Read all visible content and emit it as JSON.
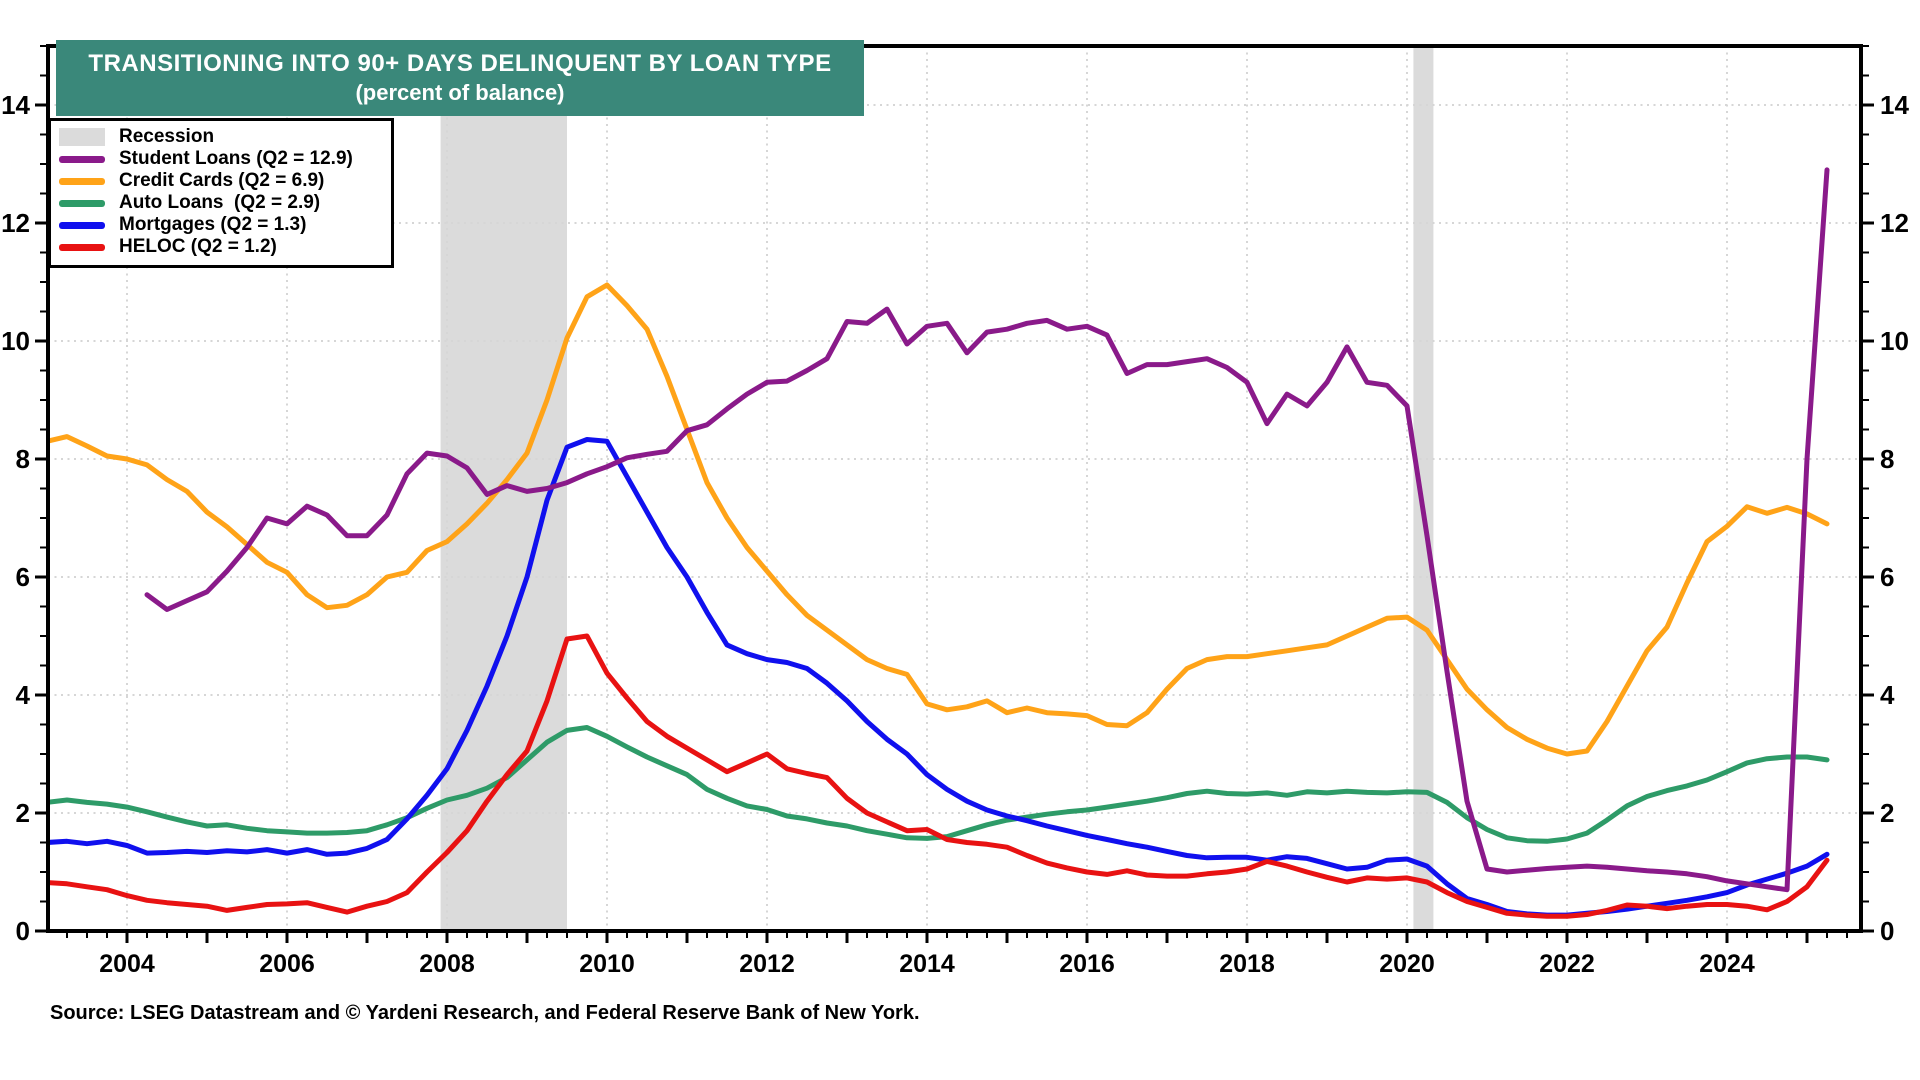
{
  "header": {
    "title": "TRANSITIONING INTO 90+ DAYS DELINQUENT BY LOAN TYPE",
    "subtitle": "(percent of balance)"
  },
  "source_note": "Source: LSEG Datastream and © Yardeni Research, and Federal Reserve Bank of New York.",
  "colors": {
    "banner_bg": "#3A887A",
    "grid": "#D6D6D6",
    "recession_band": "#DBDBDB",
    "axis": "#000000",
    "student_loans": "#8A1A8A",
    "credit_cards": "#FFA318",
    "auto_loans": "#2E9B68",
    "mortgages": "#1010EE",
    "heloc": "#E81212"
  },
  "legend": {
    "items": [
      {
        "label": "Recession",
        "swatch_type": "band",
        "color": "#DBDBDB"
      },
      {
        "label": "Student Loans (Q2 = 12.9)",
        "swatch_type": "line",
        "color": "#8A1A8A"
      },
      {
        "label": "Credit Cards (Q2 = 6.9)",
        "swatch_type": "line",
        "color": "#FFA318"
      },
      {
        "label": "Auto Loans  (Q2 = 2.9)",
        "swatch_type": "line",
        "color": "#2E9B68"
      },
      {
        "label": "Mortgages (Q2 = 1.3)",
        "swatch_type": "line",
        "color": "#1010EE"
      },
      {
        "label": "HELOC (Q2 = 1.2)",
        "swatch_type": "line",
        "color": "#E81212"
      }
    ]
  },
  "chart_data": {
    "type": "line",
    "title": "TRANSITIONING INTO 90+ DAYS DELINQUENT BY LOAN TYPE",
    "subtitle": "(percent of balance)",
    "xlabel": "",
    "ylabel": "percent of balance",
    "grid": true,
    "legend_position": "top-left",
    "x_range": [
      2003.0,
      2025.67
    ],
    "ylim": [
      0,
      15
    ],
    "y_ticks": [
      0,
      2,
      4,
      6,
      8,
      10,
      12,
      14
    ],
    "x_tick_labels": [
      "2004",
      "2006",
      "2008",
      "2010",
      "2012",
      "2014",
      "2016",
      "2018",
      "2020",
      "2022",
      "2024"
    ],
    "x_ticks": [
      2004,
      2006,
      2008,
      2010,
      2012,
      2014,
      2016,
      2018,
      2020,
      2022,
      2024
    ],
    "recession_bands": [
      [
        2007.92,
        2009.5
      ],
      [
        2020.08,
        2020.33
      ]
    ],
    "x_step": 0.25,
    "series": [
      {
        "key": "credit_cards",
        "name": "Credit Cards (Q2 = 6.9)",
        "color": "#FFA318",
        "start": 2003.0,
        "values": [
          8.3,
          8.38,
          8.22,
          8.05,
          8.0,
          7.9,
          7.65,
          7.45,
          7.1,
          6.85,
          6.55,
          6.25,
          6.08,
          5.7,
          5.48,
          5.52,
          5.7,
          6.0,
          6.08,
          6.45,
          6.6,
          6.9,
          7.25,
          7.65,
          8.1,
          9.0,
          10.05,
          10.75,
          10.95,
          10.6,
          10.2,
          9.4,
          8.5,
          7.6,
          7.0,
          6.5,
          6.1,
          5.7,
          5.35,
          5.1,
          4.85,
          4.6,
          4.45,
          4.35,
          3.85,
          3.75,
          3.8,
          3.9,
          3.7,
          3.78,
          3.7,
          3.68,
          3.65,
          3.5,
          3.48,
          3.7,
          4.1,
          4.45,
          4.6,
          4.65,
          4.65,
          4.7,
          4.75,
          4.8,
          4.85,
          5.0,
          5.15,
          5.3,
          5.32,
          5.1,
          4.6,
          4.1,
          3.75,
          3.45,
          3.25,
          3.1,
          3.0,
          3.05,
          3.55,
          4.15,
          4.75,
          5.15,
          5.9,
          6.6,
          6.86,
          7.19,
          7.08,
          7.18,
          7.07,
          6.9
        ]
      },
      {
        "key": "auto_loans",
        "name": "Auto Loans  (Q2 = 2.9)",
        "color": "#2E9B68",
        "start": 2003.0,
        "values": [
          2.18,
          2.22,
          2.18,
          2.15,
          2.1,
          2.02,
          1.93,
          1.85,
          1.78,
          1.8,
          1.74,
          1.7,
          1.68,
          1.66,
          1.66,
          1.67,
          1.7,
          1.8,
          1.92,
          2.08,
          2.22,
          2.3,
          2.42,
          2.6,
          2.9,
          3.2,
          3.4,
          3.45,
          3.3,
          3.12,
          2.95,
          2.8,
          2.65,
          2.4,
          2.25,
          2.12,
          2.06,
          1.95,
          1.9,
          1.83,
          1.78,
          1.7,
          1.64,
          1.58,
          1.57,
          1.6,
          1.7,
          1.8,
          1.88,
          1.93,
          1.98,
          2.02,
          2.05,
          2.1,
          2.15,
          2.2,
          2.26,
          2.33,
          2.37,
          2.33,
          2.32,
          2.34,
          2.3,
          2.36,
          2.34,
          2.37,
          2.35,
          2.34,
          2.36,
          2.35,
          2.18,
          1.92,
          1.72,
          1.58,
          1.53,
          1.52,
          1.56,
          1.66,
          1.88,
          2.12,
          2.28,
          2.38,
          2.46,
          2.56,
          2.7,
          2.85,
          2.92,
          2.95,
          2.95,
          2.9
        ]
      },
      {
        "key": "mortgages",
        "name": "Mortgages (Q2 = 1.3)",
        "color": "#1010EE",
        "start": 2003.0,
        "values": [
          1.5,
          1.52,
          1.48,
          1.52,
          1.45,
          1.32,
          1.33,
          1.35,
          1.33,
          1.36,
          1.34,
          1.38,
          1.32,
          1.38,
          1.3,
          1.32,
          1.4,
          1.55,
          1.9,
          2.3,
          2.75,
          3.4,
          4.15,
          5.0,
          6.0,
          7.3,
          8.2,
          8.33,
          8.3,
          7.7,
          7.1,
          6.5,
          6.0,
          5.4,
          4.85,
          4.7,
          4.6,
          4.55,
          4.45,
          4.2,
          3.9,
          3.55,
          3.25,
          3.0,
          2.65,
          2.4,
          2.2,
          2.05,
          1.95,
          1.87,
          1.78,
          1.7,
          1.62,
          1.55,
          1.48,
          1.42,
          1.35,
          1.28,
          1.24,
          1.25,
          1.25,
          1.2,
          1.26,
          1.23,
          1.14,
          1.05,
          1.08,
          1.2,
          1.22,
          1.1,
          0.8,
          0.55,
          0.45,
          0.33,
          0.29,
          0.27,
          0.27,
          0.3,
          0.33,
          0.37,
          0.42,
          0.47,
          0.52,
          0.58,
          0.65,
          0.78,
          0.88,
          0.98,
          1.1,
          1.3
        ]
      },
      {
        "key": "heloc",
        "name": "HELOC (Q2 = 1.2)",
        "color": "#E81212",
        "start": 2003.0,
        "values": [
          0.82,
          0.8,
          0.75,
          0.7,
          0.6,
          0.52,
          0.48,
          0.45,
          0.42,
          0.35,
          0.4,
          0.45,
          0.46,
          0.48,
          0.4,
          0.32,
          0.42,
          0.5,
          0.65,
          1.0,
          1.33,
          1.7,
          2.2,
          2.65,
          3.05,
          3.9,
          4.95,
          5.0,
          4.37,
          3.95,
          3.55,
          3.3,
          3.1,
          2.9,
          2.7,
          2.85,
          3.0,
          2.75,
          2.67,
          2.6,
          2.25,
          2.0,
          1.85,
          1.7,
          1.72,
          1.55,
          1.5,
          1.47,
          1.42,
          1.28,
          1.15,
          1.07,
          1.0,
          0.96,
          1.02,
          0.95,
          0.93,
          0.93,
          0.97,
          1.0,
          1.05,
          1.18,
          1.1,
          1.0,
          0.91,
          0.83,
          0.9,
          0.88,
          0.9,
          0.83,
          0.65,
          0.5,
          0.4,
          0.3,
          0.27,
          0.25,
          0.25,
          0.28,
          0.35,
          0.44,
          0.42,
          0.38,
          0.42,
          0.45,
          0.45,
          0.42,
          0.36,
          0.5,
          0.75,
          1.2
        ]
      },
      {
        "key": "student_loans",
        "name": "Student Loans (Q2 = 12.9)",
        "color": "#8A1A8A",
        "start": 2004.25,
        "values": [
          5.7,
          5.45,
          5.6,
          5.75,
          6.1,
          6.5,
          7.0,
          6.9,
          7.2,
          7.05,
          6.7,
          6.7,
          7.05,
          7.75,
          8.1,
          8.05,
          7.85,
          7.4,
          7.55,
          7.45,
          7.5,
          7.6,
          7.75,
          7.87,
          8.02,
          8.08,
          8.13,
          8.48,
          8.58,
          8.85,
          9.1,
          9.3,
          9.32,
          9.5,
          9.7,
          10.33,
          10.3,
          10.54,
          9.95,
          10.25,
          10.3,
          9.8,
          10.15,
          10.2,
          10.3,
          10.35,
          10.2,
          10.25,
          10.1,
          9.45,
          9.6,
          9.6,
          9.65,
          9.7,
          9.55,
          9.3,
          8.6,
          9.1,
          8.9,
          9.3,
          9.9,
          9.3,
          9.25,
          8.9,
          6.7,
          4.4,
          2.2,
          1.05,
          1.0,
          1.03,
          1.06,
          1.08,
          1.1,
          1.08,
          1.05,
          1.02,
          1.0,
          0.97,
          0.92,
          0.85,
          0.8,
          0.75,
          0.7,
          8.0,
          12.9
        ]
      }
    ]
  }
}
